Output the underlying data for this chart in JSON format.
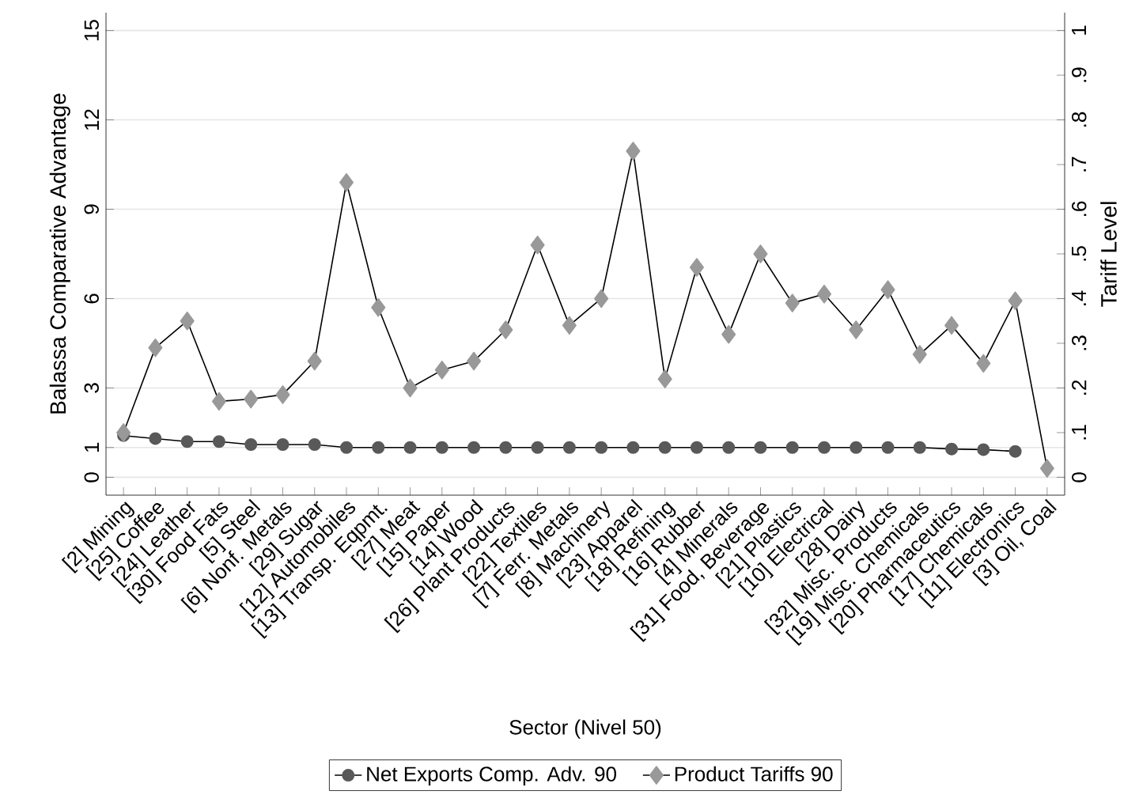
{
  "chart_data": {
    "type": "line",
    "xlabel": "Sector (Nivel 50)",
    "ylabel": "Balassa Comparative Advantage",
    "y2label": "Tariff Level",
    "categories": [
      "[2] Mining",
      "[25] Coffee",
      "[24] Leather",
      "[30] Food Fats",
      "[5] Steel",
      "[6] Nonf. Metals",
      "[29] Sugar",
      "[12] Automobiles",
      "[13] Transp. Eqpmt.",
      "[27] Meat",
      "[15] Paper",
      "[14] Wood",
      "[26] Plant Products",
      "[22] Textiles",
      "[7] Ferr. Metals",
      "[8] Machinery",
      "[23] Apparel",
      "[18] Refining",
      "[16] Rubber",
      "[4] Minerals",
      "[31] Food, Beverage",
      "[21] Plastics",
      "[10] Electrical",
      "[28] Dairy",
      "[32] Misc. Products",
      "[19] Misc. Chemicals",
      "[20] Pharmaceutics",
      "[17] Chemicals",
      "[11] Electronics",
      "[3] Oil, Coal"
    ],
    "series": [
      {
        "name": "Net Exports Comp. Adv. 90",
        "color": "#595959",
        "marker": "circle",
        "values": [
          1.4,
          1.3,
          1.2,
          1.2,
          1.1,
          1.1,
          1.1,
          1.0,
          1.0,
          1.0,
          1.0,
          1.0,
          1.0,
          1.0,
          1.0,
          1.0,
          1.0,
          1.0,
          1.0,
          1.0,
          1.0,
          1.0,
          1.0,
          1.0,
          1.0,
          1.0,
          0.95,
          0.93,
          0.87,
          null
        ]
      },
      {
        "name": "Product Tariffs 90",
        "color": "#999999",
        "marker": "diamond",
        "axis": "y2",
        "values": [
          0.1,
          0.29,
          0.35,
          0.17,
          0.175,
          0.185,
          0.26,
          0.66,
          0.38,
          0.2,
          0.24,
          0.26,
          0.33,
          0.52,
          0.34,
          0.4,
          0.73,
          0.22,
          0.47,
          0.32,
          0.5,
          0.39,
          0.41,
          0.33,
          0.42,
          0.275,
          0.34,
          0.255,
          0.395,
          0.02
        ]
      }
    ],
    "ylim": [
      -0.6,
      15.6
    ],
    "yticks": [
      0,
      1,
      3,
      6,
      9,
      12,
      15
    ],
    "y2lim": [
      -0.04,
      1.04
    ],
    "y2ticks": [
      0,
      {
        "value": 0.1,
        "label": ".1"
      },
      {
        "value": 0.2,
        "label": ".2"
      },
      {
        "value": 0.3,
        "label": ".3"
      },
      {
        "value": 0.4,
        "label": ".4"
      },
      {
        "value": 0.5,
        "label": ".5"
      },
      {
        "value": 0.6,
        "label": ".6"
      },
      {
        "value": 0.7,
        "label": ".7"
      },
      {
        "value": 0.8,
        "label": ".8"
      },
      {
        "value": 0.9,
        "label": ".9"
      },
      1
    ],
    "grid": "y",
    "legend": "bottom"
  }
}
